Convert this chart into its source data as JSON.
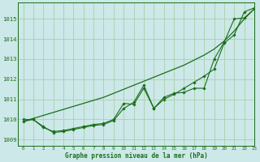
{
  "title": "Graphe pression niveau de la mer (hPa)",
  "background_color": "#cce8e8",
  "grid_color": "#aacfaa",
  "line_color": "#1a6e1a",
  "xlim": [
    -0.5,
    23
  ],
  "ylim": [
    1008.7,
    1015.8
  ],
  "yticks": [
    1009,
    1010,
    1011,
    1012,
    1013,
    1014,
    1015
  ],
  "xticks": [
    0,
    1,
    2,
    3,
    4,
    5,
    6,
    7,
    8,
    9,
    10,
    11,
    12,
    13,
    14,
    15,
    16,
    17,
    18,
    19,
    20,
    21,
    22,
    23
  ],
  "series_smooth": [
    1009.9,
    1010.05,
    1010.2,
    1010.35,
    1010.5,
    1010.65,
    1010.8,
    1010.95,
    1011.1,
    1011.3,
    1011.5,
    1011.7,
    1011.9,
    1012.1,
    1012.3,
    1012.5,
    1012.7,
    1012.95,
    1013.2,
    1013.5,
    1013.9,
    1014.4,
    1015.0,
    1015.5
  ],
  "series_marker1": [
    1010.0,
    1010.0,
    1009.6,
    1009.4,
    1009.45,
    1009.55,
    1009.65,
    1009.75,
    1009.8,
    1010.0,
    1010.8,
    1010.75,
    1011.55,
    1010.55,
    1011.1,
    1011.3,
    1011.35,
    1011.55,
    1011.55,
    1013.0,
    1013.85,
    1015.0,
    1015.05,
    1015.5
  ],
  "series_marker2": [
    1009.9,
    1010.0,
    1009.65,
    1009.35,
    1009.4,
    1009.5,
    1009.6,
    1009.7,
    1009.75,
    1009.95,
    1010.55,
    1010.85,
    1011.7,
    1010.55,
    1011.0,
    1011.25,
    1011.55,
    1011.85,
    1012.15,
    1012.5,
    1013.8,
    1014.2,
    1015.35,
    1015.55
  ]
}
